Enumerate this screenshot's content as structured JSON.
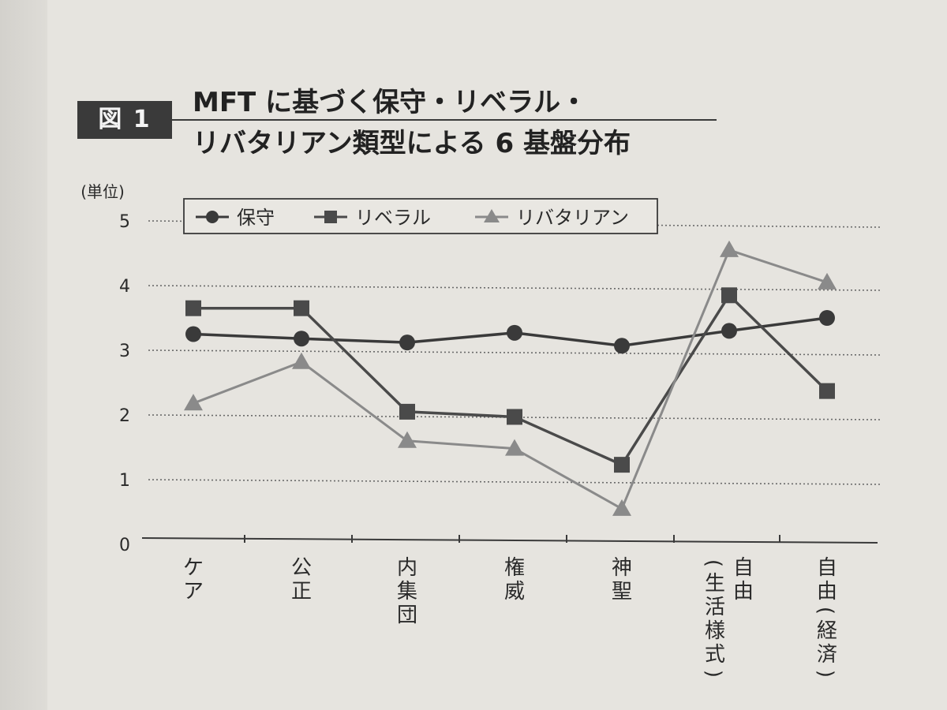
{
  "figure": {
    "tag": "図 1",
    "title_line1": "MFT に基づく保守・リベラル・",
    "title_line2": "リバタリアン類型による 6 基盤分布"
  },
  "chart_data": {
    "type": "line",
    "ylabel": "(単位)",
    "ylim": [
      0,
      5
    ],
    "yticks": [
      0,
      1,
      2,
      3,
      4,
      5
    ],
    "grid": true,
    "legend_position": "top",
    "categories": [
      "ケア",
      "公正",
      "内集団",
      "権威",
      "神聖",
      "自由(生活様式)",
      "自由(経済)"
    ],
    "category_label_lines": [
      [
        "ケア"
      ],
      [
        "公正"
      ],
      [
        "内集団"
      ],
      [
        "権威"
      ],
      [
        "神聖"
      ],
      [
        "自由",
        "(生活様式)"
      ],
      [
        "自由(経済)"
      ]
    ],
    "series": [
      {
        "name": "保守",
        "marker": "circle",
        "color": "#3a3a3a",
        "values": [
          3.25,
          3.18,
          3.12,
          3.27,
          3.07,
          3.3,
          3.5
        ]
      },
      {
        "name": "リベラル",
        "marker": "square",
        "color": "#4a4a4a",
        "values": [
          3.65,
          3.65,
          2.05,
          1.97,
          1.23,
          3.85,
          2.37
        ]
      },
      {
        "name": "リバタリアン",
        "marker": "triangle",
        "color": "#8a8a8a",
        "values": [
          2.18,
          2.82,
          1.6,
          1.48,
          0.55,
          4.55,
          4.05
        ]
      }
    ]
  }
}
